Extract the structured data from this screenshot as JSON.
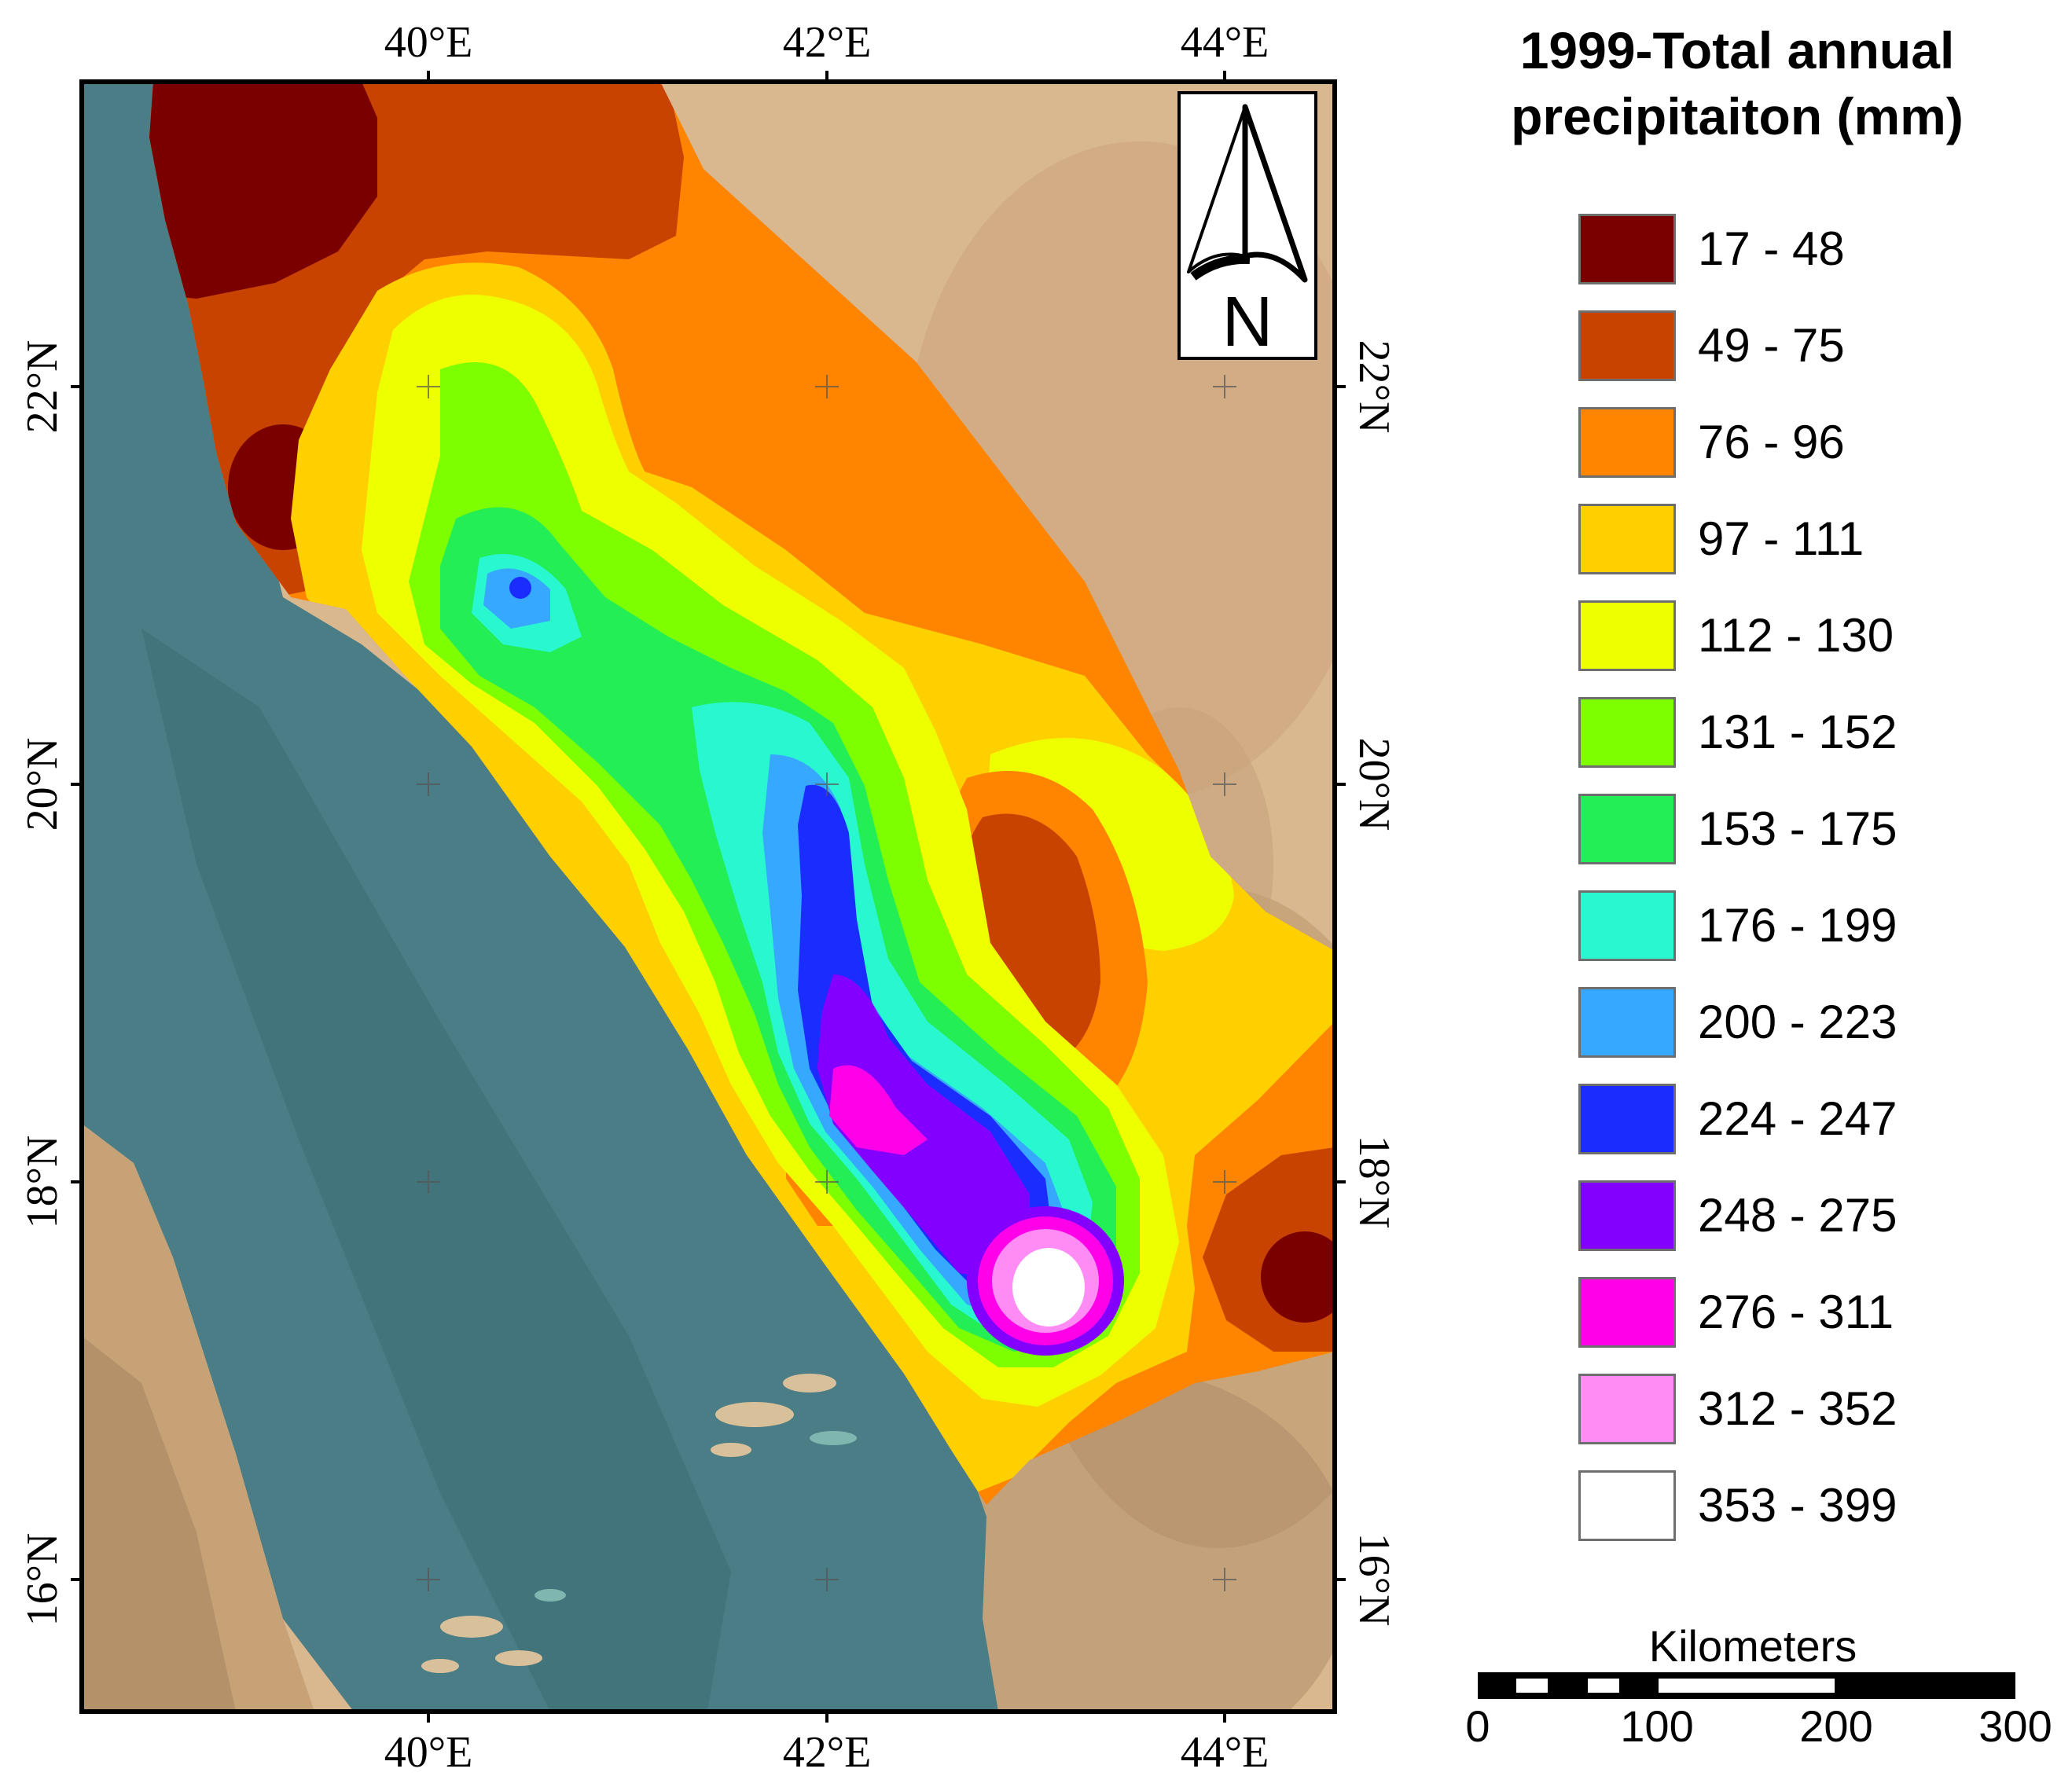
{
  "map": {
    "top_lon_labels": [
      "40°E",
      "42°E",
      "44°E"
    ],
    "bottom_lon_labels": [
      "40°E",
      "42°E",
      "44°E"
    ],
    "left_lat_labels": [
      "22°N",
      "20°N",
      "18°N",
      "16°N"
    ],
    "right_lat_labels": [
      "22°N",
      "20°N",
      "18°N",
      "16°N"
    ],
    "north_arrow_label": "N"
  },
  "legend": {
    "title_line1": "1999-Total annual",
    "title_line2": "precipitaiton (mm)",
    "items": [
      {
        "label": "17 - 48",
        "color": "#7a0000"
      },
      {
        "label": "49 - 75",
        "color": "#c84200"
      },
      {
        "label": "76 - 96",
        "color": "#ff8500"
      },
      {
        "label": "97 - 111",
        "color": "#ffd000"
      },
      {
        "label": "112 - 130",
        "color": "#eeff00"
      },
      {
        "label": "131 - 152",
        "color": "#7dff00"
      },
      {
        "label": "153 - 175",
        "color": "#23ee55"
      },
      {
        "label": "176 - 199",
        "color": "#28f7d0"
      },
      {
        "label": "200 - 223",
        "color": "#36a8ff"
      },
      {
        "label": "224 - 247",
        "color": "#1b2cff"
      },
      {
        "label": "248 - 275",
        "color": "#8300ff"
      },
      {
        "label": "276 - 311",
        "color": "#ff00e9"
      },
      {
        "label": "312 - 352",
        "color": "#ff8cf4"
      },
      {
        "label": "353 - 399",
        "color": "#ffffff"
      }
    ]
  },
  "scale_bar": {
    "title": "Kilometers",
    "ticks": [
      "0",
      "100",
      "200",
      "300"
    ]
  }
}
